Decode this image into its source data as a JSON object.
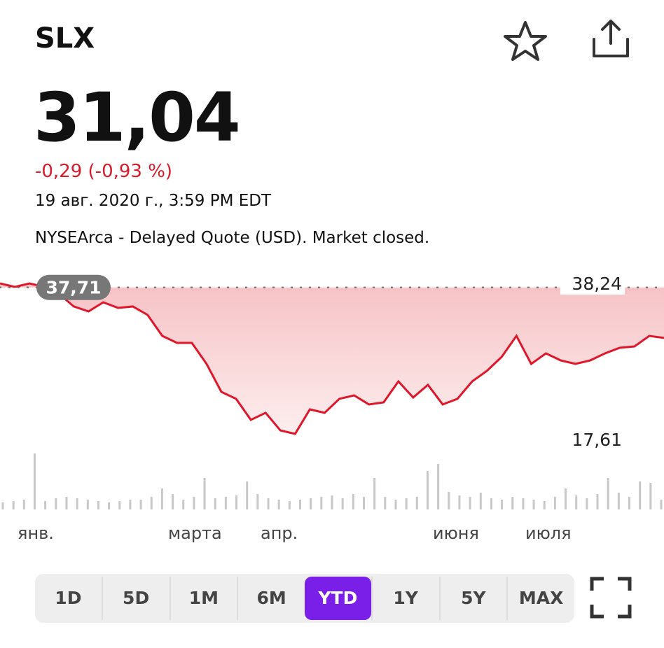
{
  "header": {
    "ticker": "SLX",
    "price": "31,04",
    "change": "-0,29 (-0,93 %)",
    "date": "19 авг. 2020 г., 3:59 PM EDT",
    "source": "NYSEArca - Delayed Quote (USD). Market closed."
  },
  "chart_data": {
    "type": "line",
    "series": [
      {
        "name": "SLX",
        "color": "#e0162b",
        "values": [
          38.24,
          37.78,
          38.24,
          37.78,
          36.85,
          35.19,
          34.54,
          35.74,
          35.0,
          35.19,
          34.08,
          31.3,
          30.38,
          30.38,
          27.6,
          23.9,
          22.98,
          20.2,
          21.13,
          18.81,
          18.35,
          21.59,
          21.13,
          22.98,
          23.44,
          22.24,
          22.51,
          25.29,
          23.16,
          24.83,
          22.24,
          22.98,
          25.29,
          26.68,
          28.53,
          31.3,
          27.6,
          28.99,
          28.06,
          27.6,
          28.06,
          28.99,
          29.73,
          29.91,
          31.3,
          31.04
        ]
      }
    ],
    "reference": {
      "value": 37.71,
      "label": "37,71"
    },
    "ylim": [
      17.61,
      38.24
    ],
    "yticks": [
      {
        "value": 38.24,
        "label": "38,24"
      },
      {
        "value": 17.61,
        "label": "17,61"
      }
    ],
    "x_labels": [
      "янв.",
      "марта",
      "апр.",
      "июня",
      "июля"
    ],
    "volume": [
      10,
      12,
      14,
      80,
      12,
      16,
      18,
      16,
      14,
      12,
      10,
      12,
      14,
      14,
      18,
      30,
      22,
      14,
      18,
      45,
      16,
      18,
      20,
      40,
      22,
      16,
      14,
      12,
      14,
      16,
      18,
      20,
      16,
      22,
      18,
      45,
      18,
      14,
      16,
      18,
      55,
      65,
      25,
      20,
      18,
      24,
      16,
      14,
      18,
      16,
      14,
      12,
      18,
      30,
      20,
      16,
      22,
      45,
      24,
      18,
      40,
      38,
      14
    ],
    "ranges": [
      "1D",
      "5D",
      "1M",
      "6M",
      "YTD",
      "1Y",
      "5Y",
      "MAX"
    ],
    "active_range": 4
  }
}
